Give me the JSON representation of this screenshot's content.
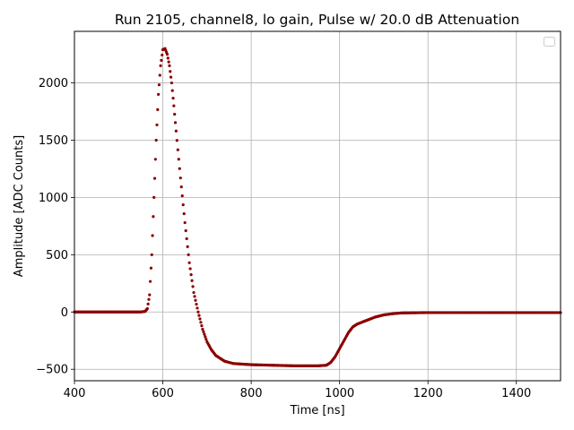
{
  "chart_data": {
    "type": "scatter",
    "title": "Run 2105, channel8, lo gain, Pulse w/ 20.0 dB Attenuation",
    "xlabel": "Time [ns]",
    "ylabel": "Amplitude [ADC Counts]",
    "xlim": [
      400,
      1500
    ],
    "ylim": [
      -600,
      2450
    ],
    "xticks": [
      400,
      600,
      800,
      1000,
      1200,
      1400
    ],
    "yticks": [
      -500,
      0,
      500,
      1000,
      1500,
      2000
    ],
    "xtick_labels": [
      "400",
      "600",
      "800",
      "1000",
      "1200",
      "1400"
    ],
    "ytick_labels": [
      "−500",
      "0",
      "500",
      "1000",
      "1500",
      "2000"
    ],
    "grid": true,
    "legend": "top-right (empty)",
    "marker_color": "#8b0000",
    "series": [
      {
        "x": [
          400,
          450,
          500,
          550,
          560,
          565,
          570,
          575,
          580,
          585,
          590,
          595,
          600,
          605,
          610,
          615,
          620,
          625,
          630,
          640,
          650,
          660,
          670,
          680,
          690,
          700,
          710,
          720,
          740,
          760,
          780,
          800,
          850,
          900,
          950,
          970,
          980,
          990,
          1000,
          1010,
          1020,
          1030,
          1040,
          1060,
          1080,
          1100,
          1120,
          1140,
          1200,
          1300,
          1400,
          1500
        ],
        "y": [
          0,
          0,
          0,
          0,
          5,
          30,
          150,
          500,
          1000,
          1500,
          1900,
          2150,
          2290,
          2300,
          2250,
          2150,
          2000,
          1800,
          1580,
          1170,
          780,
          430,
          170,
          0,
          -150,
          -260,
          -330,
          -380,
          -430,
          -450,
          -455,
          -460,
          -465,
          -470,
          -470,
          -465,
          -440,
          -390,
          -320,
          -250,
          -180,
          -130,
          -105,
          -75,
          -45,
          -25,
          -15,
          -8,
          -5,
          -5,
          -5,
          -5
        ]
      }
    ]
  }
}
